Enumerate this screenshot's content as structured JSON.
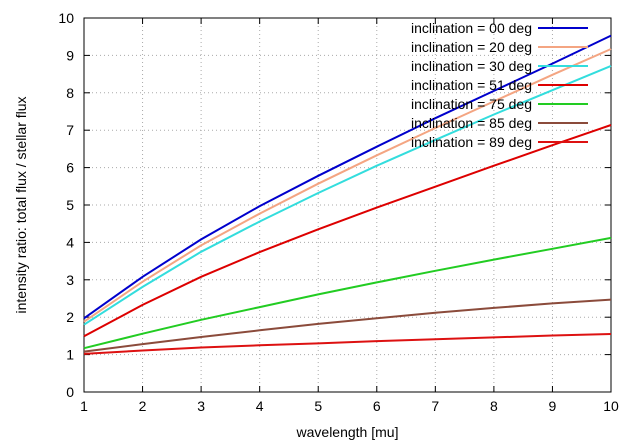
{
  "chart_data": {
    "type": "line",
    "title": "",
    "xlabel": "wavelength [mu]",
    "ylabel": "intensity ratio: total flux / stellar flux",
    "xlim": [
      1,
      10
    ],
    "ylim": [
      0,
      10
    ],
    "xticks": [
      1,
      2,
      3,
      4,
      5,
      6,
      7,
      8,
      9,
      10
    ],
    "yticks": [
      0,
      1,
      2,
      3,
      4,
      5,
      6,
      7,
      8,
      9,
      10
    ],
    "grid": true,
    "legend_position": "top-right",
    "x": [
      1,
      2,
      3,
      4,
      5,
      6,
      7,
      8,
      9,
      10
    ],
    "series": [
      {
        "name": "inclination = 00 deg",
        "color": "#0000cc",
        "values": [
          1.97,
          3.08,
          4.08,
          4.97,
          5.78,
          6.56,
          7.32,
          8.05,
          8.78,
          9.53
        ]
      },
      {
        "name": "inclination = 20 deg",
        "color": "#f4a582",
        "values": [
          1.88,
          2.95,
          3.92,
          4.77,
          5.57,
          6.33,
          7.06,
          7.77,
          8.48,
          9.17
        ]
      },
      {
        "name": "inclination = 30 deg",
        "color": "#33dddd",
        "values": [
          1.8,
          2.81,
          3.75,
          4.56,
          5.32,
          6.05,
          6.74,
          7.42,
          8.07,
          8.72
        ]
      },
      {
        "name": "inclination = 51 deg",
        "color": "#dd0000",
        "values": [
          1.49,
          2.33,
          3.08,
          3.74,
          4.35,
          4.93,
          5.49,
          6.05,
          6.6,
          7.14
        ]
      },
      {
        "name": "inclination = 75 deg",
        "color": "#22cc22",
        "values": [
          1.17,
          1.56,
          1.93,
          2.27,
          2.61,
          2.93,
          3.24,
          3.54,
          3.83,
          4.12
        ]
      },
      {
        "name": "inclination = 85 deg",
        "color": "#8b4b3b",
        "values": [
          1.08,
          1.28,
          1.47,
          1.65,
          1.82,
          1.97,
          2.12,
          2.25,
          2.37,
          2.47
        ]
      },
      {
        "name": "inclination = 89 deg",
        "color": "#dd1111",
        "values": [
          1.02,
          1.11,
          1.19,
          1.25,
          1.3,
          1.36,
          1.41,
          1.46,
          1.51,
          1.55
        ]
      }
    ]
  }
}
